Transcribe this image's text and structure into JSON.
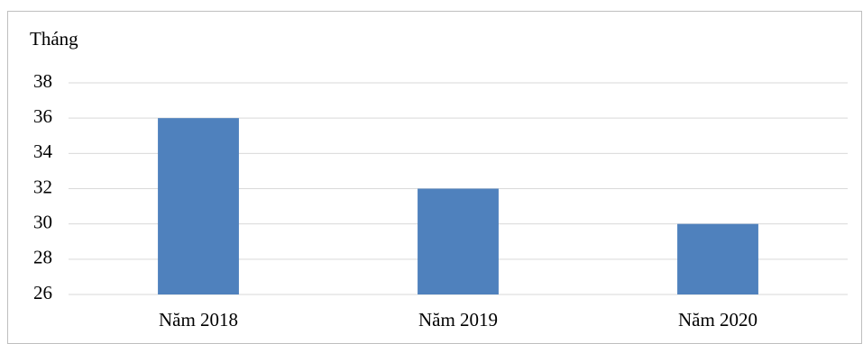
{
  "chart_data": {
    "type": "bar",
    "y_axis_label": "Tháng",
    "categories": [
      "Năm 2018",
      "Năm 2019",
      "Năm 2020"
    ],
    "values": [
      36,
      32,
      30
    ],
    "color": "#4f81bd",
    "ylim": [
      26,
      38
    ],
    "yticks": [
      26,
      28,
      30,
      32,
      34,
      36,
      38
    ],
    "grid": true
  }
}
